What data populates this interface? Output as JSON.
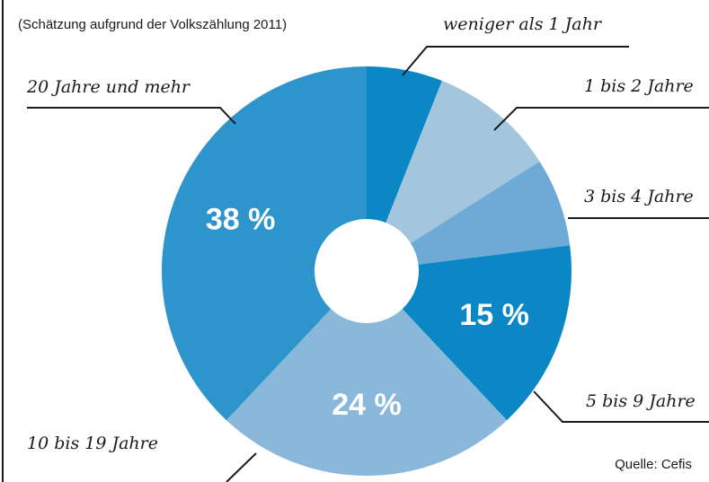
{
  "chart_data": {
    "type": "donut",
    "subtitle": "(Schätzung aufgrund der Volkszählung 2011)",
    "source": "Quelle: Cefis",
    "categories": [
      "weniger als 1 Jahr",
      "1 bis 2 Jahre",
      "3 bis 4 Jahre",
      "5 bis 9 Jahre",
      "10 bis 19 Jahre",
      "20 Jahre und mehr"
    ],
    "values": [
      6,
      10,
      7,
      15,
      24,
      38
    ],
    "value_labels": [
      null,
      null,
      null,
      "15 %",
      "24 %",
      "38 %"
    ],
    "colors": [
      "#0a87c4",
      "#a3c6de",
      "#6eaad6",
      "#0a87c4",
      "#8ab8da",
      "#2e95cc"
    ]
  }
}
